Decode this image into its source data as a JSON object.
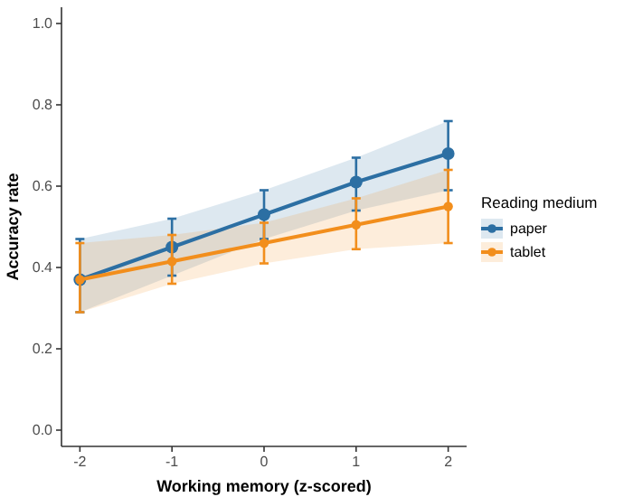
{
  "chart_data": {
    "type": "line",
    "xlabel": "Working memory (z-scored)",
    "ylabel": "Accuracy rate",
    "legend_title": "Reading medium",
    "legend": "right",
    "marker": "circle",
    "grid": false,
    "x": [
      -2,
      -1,
      0,
      1,
      2
    ],
    "xlim": [
      -2.2,
      2.2
    ],
    "xticks": [
      -2,
      -1,
      0,
      1,
      2
    ],
    "ylim": [
      -0.04,
      1.04
    ],
    "yticks": [
      {
        "value": 0,
        "label": "0.0"
      },
      {
        "value": 0.2,
        "label": "0.2"
      },
      {
        "value": 0.4,
        "label": "0.4"
      },
      {
        "value": 0.6,
        "label": "0.6"
      },
      {
        "value": 0.8,
        "label": "0.8"
      },
      {
        "value": 1,
        "label": "1.0"
      }
    ],
    "series": [
      {
        "name": "paper",
        "color": "#2c6fa3",
        "values": [
          0.37,
          0.45,
          0.53,
          0.61,
          0.68
        ],
        "errors": [
          [
            0.29,
            0.47
          ],
          [
            0.38,
            0.52
          ],
          [
            0.47,
            0.59
          ],
          [
            0.54,
            0.67
          ],
          [
            0.59,
            0.76
          ]
        ],
        "lower": [
          0.29,
          0.38,
          0.47,
          0.54,
          0.59
        ],
        "upper": [
          0.47,
          0.52,
          0.59,
          0.67,
          0.76
        ]
      },
      {
        "name": "tablet",
        "color": "#f28e1c",
        "values": [
          0.37,
          0.415,
          0.46,
          0.505,
          0.55
        ],
        "errors": [
          [
            0.29,
            0.46
          ],
          [
            0.36,
            0.48
          ],
          [
            0.41,
            0.51
          ],
          [
            0.445,
            0.57
          ],
          [
            0.46,
            0.64
          ]
        ],
        "lower": [
          0.29,
          0.36,
          0.41,
          0.445,
          0.46
        ],
        "upper": [
          0.46,
          0.48,
          0.51,
          0.57,
          0.64
        ]
      }
    ]
  }
}
